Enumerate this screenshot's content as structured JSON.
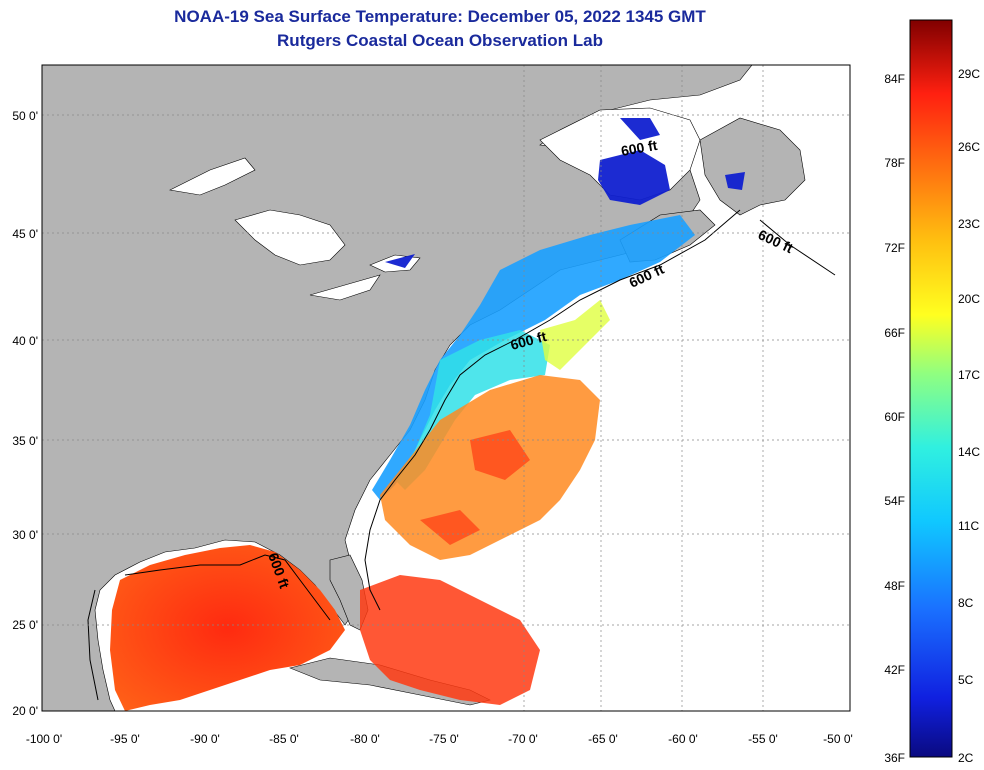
{
  "header": {
    "title": "NOAA-19 Sea Surface Temperature:  December 05, 2022 1345 GMT",
    "subtitle": "Rutgers Coastal Ocean Observation Lab"
  },
  "axes": {
    "lon_labels": [
      "-100 0'",
      "-95 0'",
      "-90 0'",
      "-85 0'",
      "-80 0'",
      "-75 0'",
      "-70 0'",
      "-65 0'",
      "-60 0'",
      "-55 0'",
      "-50 0'"
    ],
    "lat_labels": [
      "20 0'",
      "25 0'",
      "30 0'",
      "35 0'",
      "40 0'",
      "45 0'",
      "50 0'"
    ],
    "lon_range": [
      -100,
      -50
    ],
    "lat_range": [
      20,
      52.5
    ]
  },
  "contour_labels": [
    "600 ft",
    "600 ft",
    "600 ft",
    "600 ft",
    "600 ft"
  ],
  "colorbar": {
    "fahrenheit": [
      "84F",
      "78F",
      "72F",
      "66F",
      "60F",
      "54F",
      "48F",
      "42F",
      "36F"
    ],
    "celsius": [
      "29C",
      "26C",
      "23C",
      "20C",
      "17C",
      "14C",
      "11C",
      "8C",
      "5C",
      "2C"
    ]
  },
  "colors": {
    "land": "#b4b4b4",
    "title": "#1a2a9c",
    "no_data": "#ffffff"
  }
}
